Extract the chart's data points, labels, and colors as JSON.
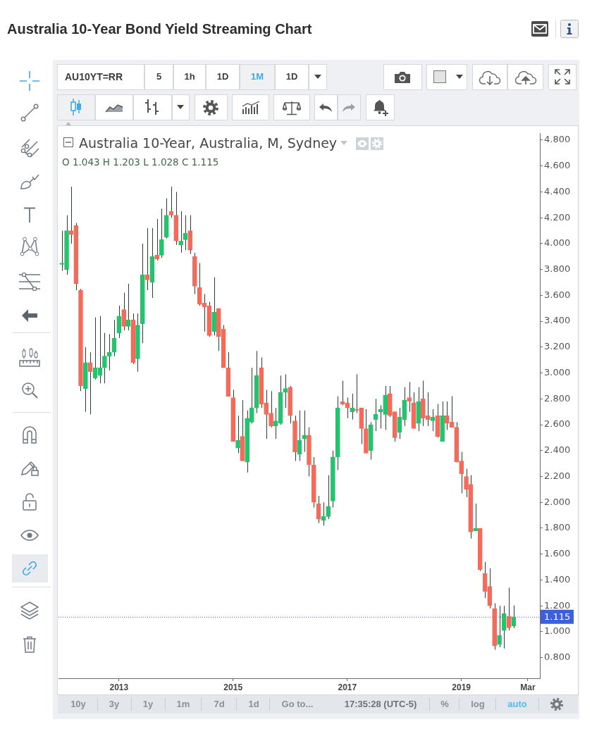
{
  "chart_data": {
    "type": "candlestick",
    "title": "Australia 10-Year Bond Yield Streaming Chart",
    "subtitle": "Australia 10-Year, Australia, M, Sydney",
    "x": [
      "2012-01",
      "2012-02",
      "2012-03",
      "2012-04",
      "2012-05",
      "2012-06",
      "2012-07",
      "2012-08",
      "2012-09",
      "2012-10",
      "2012-11",
      "2012-12",
      "2013-01",
      "2013-02",
      "2013-03",
      "2013-04",
      "2013-05",
      "2013-06",
      "2013-07",
      "2013-08",
      "2013-09",
      "2013-10",
      "2013-11",
      "2013-12",
      "2014-01",
      "2014-02",
      "2014-03",
      "2014-04",
      "2014-05",
      "2014-06",
      "2014-07",
      "2014-08",
      "2014-09",
      "2014-10",
      "2014-11",
      "2014-12",
      "2015-01",
      "2015-02",
      "2015-03",
      "2015-04",
      "2015-05",
      "2015-06",
      "2015-07",
      "2015-08",
      "2015-09",
      "2015-10",
      "2015-11",
      "2015-12",
      "2016-01",
      "2016-02",
      "2016-03",
      "2016-04",
      "2016-05",
      "2016-06",
      "2016-07",
      "2016-08",
      "2016-09",
      "2016-10",
      "2016-11",
      "2016-12",
      "2017-01",
      "2017-02",
      "2017-03",
      "2017-04",
      "2017-05",
      "2017-06",
      "2017-07",
      "2017-08",
      "2017-09",
      "2017-10",
      "2017-11",
      "2017-12",
      "2018-01",
      "2018-02",
      "2018-03",
      "2018-04",
      "2018-05",
      "2018-06",
      "2018-07",
      "2018-08",
      "2018-09",
      "2018-10",
      "2018-11",
      "2018-12",
      "2019-01",
      "2019-02",
      "2019-03",
      "2019-04",
      "2019-05",
      "2019-06",
      "2019-07",
      "2019-08",
      "2019-09",
      "2019-10",
      "2019-11",
      "2019-12"
    ],
    "ohlc": [
      [
        3.84,
        4.1,
        3.79,
        3.85
      ],
      [
        3.8,
        4.22,
        3.76,
        4.1
      ],
      [
        4.1,
        4.44,
        4.0,
        4.07
      ],
      [
        4.14,
        4.16,
        3.64,
        3.69
      ],
      [
        3.64,
        3.65,
        2.86,
        2.9
      ],
      [
        2.88,
        3.2,
        2.7,
        3.08
      ],
      [
        3.08,
        3.16,
        2.68,
        3.01
      ],
      [
        2.96,
        3.43,
        2.95,
        3.04
      ],
      [
        2.98,
        3.44,
        2.92,
        3.04
      ],
      [
        3.04,
        3.31,
        2.92,
        3.13
      ],
      [
        3.13,
        3.3,
        3.02,
        3.16
      ],
      [
        3.16,
        3.41,
        3.13,
        3.27
      ],
      [
        3.31,
        3.52,
        3.27,
        3.44
      ],
      [
        3.49,
        3.62,
        3.33,
        3.36
      ],
      [
        3.36,
        3.69,
        3.33,
        3.41
      ],
      [
        3.41,
        3.46,
        3.07,
        3.08
      ],
      [
        3.11,
        3.46,
        3.01,
        3.37
      ],
      [
        3.38,
        4.0,
        3.23,
        3.76
      ],
      [
        3.76,
        4.12,
        3.64,
        3.72
      ],
      [
        3.7,
        4.12,
        3.58,
        3.9
      ],
      [
        3.91,
        4.19,
        3.87,
        3.88
      ],
      [
        3.91,
        4.27,
        3.89,
        4.03
      ],
      [
        4.05,
        4.35,
        4.04,
        4.22
      ],
      [
        4.25,
        4.44,
        4.2,
        4.22
      ],
      [
        4.22,
        4.4,
        3.99,
        4.02
      ],
      [
        3.99,
        4.25,
        3.93,
        4.02
      ],
      [
        4.03,
        4.22,
        3.95,
        4.08
      ],
      [
        4.1,
        4.22,
        3.92,
        3.95
      ],
      [
        3.9,
        3.93,
        3.61,
        3.67
      ],
      [
        3.66,
        3.85,
        3.52,
        3.53
      ],
      [
        3.54,
        3.61,
        3.32,
        3.51
      ],
      [
        3.52,
        3.55,
        3.28,
        3.29
      ],
      [
        3.32,
        3.74,
        3.29,
        3.47
      ],
      [
        3.5,
        3.5,
        3.17,
        3.28
      ],
      [
        3.34,
        3.37,
        3.04,
        3.04
      ],
      [
        3.04,
        3.16,
        2.82,
        2.82
      ],
      [
        2.81,
        2.87,
        2.47,
        2.47
      ],
      [
        2.42,
        2.67,
        2.38,
        2.48
      ],
      [
        2.51,
        2.79,
        2.32,
        2.32
      ],
      [
        2.31,
        2.71,
        2.23,
        2.65
      ],
      [
        2.62,
        3.04,
        2.61,
        2.73
      ],
      [
        2.73,
        3.17,
        2.69,
        2.98
      ],
      [
        3.04,
        3.12,
        2.73,
        2.76
      ],
      [
        2.77,
        2.87,
        2.49,
        2.68
      ],
      [
        2.69,
        2.86,
        2.58,
        2.59
      ],
      [
        2.59,
        2.73,
        2.49,
        2.63
      ],
      [
        2.61,
        2.98,
        2.6,
        2.85
      ],
      [
        2.85,
        2.99,
        2.73,
        2.88
      ],
      [
        2.89,
        2.9,
        2.61,
        2.67
      ],
      [
        2.63,
        2.67,
        2.32,
        2.39
      ],
      [
        2.37,
        2.71,
        2.32,
        2.48
      ],
      [
        2.49,
        2.71,
        2.39,
        2.52
      ],
      [
        2.52,
        2.58,
        2.2,
        2.29
      ],
      [
        2.29,
        2.35,
        1.96,
        2.0
      ],
      [
        1.99,
        2.05,
        1.84,
        1.87
      ],
      [
        1.86,
        2.0,
        1.82,
        1.89
      ],
      [
        1.89,
        2.21,
        1.87,
        1.97
      ],
      [
        2.01,
        2.4,
        1.96,
        2.35
      ],
      [
        2.35,
        2.82,
        2.25,
        2.73
      ],
      [
        2.78,
        2.94,
        2.75,
        2.76
      ],
      [
        2.77,
        2.81,
        2.65,
        2.73
      ],
      [
        2.7,
        2.84,
        2.64,
        2.73
      ],
      [
        2.72,
        2.99,
        2.69,
        2.71
      ],
      [
        2.73,
        2.73,
        2.45,
        2.57
      ],
      [
        2.57,
        2.72,
        2.38,
        2.38
      ],
      [
        2.4,
        2.62,
        2.33,
        2.6
      ],
      [
        2.64,
        2.8,
        2.55,
        2.68
      ],
      [
        2.7,
        2.75,
        2.57,
        2.72
      ],
      [
        2.68,
        2.9,
        2.56,
        2.83
      ],
      [
        2.84,
        2.9,
        2.66,
        2.67
      ],
      [
        2.7,
        2.7,
        2.47,
        2.5
      ],
      [
        2.54,
        2.73,
        2.49,
        2.66
      ],
      [
        2.64,
        2.89,
        2.59,
        2.79
      ],
      [
        2.81,
        2.93,
        2.7,
        2.78
      ],
      [
        2.77,
        2.85,
        2.57,
        2.57
      ],
      [
        2.61,
        2.89,
        2.55,
        2.78
      ],
      [
        2.8,
        2.94,
        2.59,
        2.65
      ],
      [
        2.67,
        2.85,
        2.59,
        2.64
      ],
      [
        2.63,
        2.72,
        2.55,
        2.66
      ],
      [
        2.67,
        2.76,
        2.5,
        2.51
      ],
      [
        2.47,
        2.78,
        2.47,
        2.67
      ],
      [
        2.67,
        2.78,
        2.56,
        2.61
      ],
      [
        2.62,
        2.82,
        2.58,
        2.58
      ],
      [
        2.58,
        2.62,
        2.31,
        2.31
      ],
      [
        2.32,
        2.39,
        2.07,
        2.22
      ],
      [
        2.2,
        2.26,
        2.04,
        2.1
      ],
      [
        2.14,
        2.21,
        1.72,
        1.77
      ],
      [
        1.78,
        1.99,
        1.78,
        1.8
      ],
      [
        1.8,
        1.8,
        1.47,
        1.48
      ],
      [
        1.45,
        1.54,
        1.26,
        1.31
      ],
      [
        1.35,
        1.49,
        1.18,
        1.2
      ],
      [
        1.18,
        1.22,
        0.86,
        0.89
      ],
      [
        0.9,
        1.2,
        0.88,
        0.97
      ],
      [
        1.01,
        1.2,
        0.87,
        1.14
      ],
      [
        1.12,
        1.34,
        1.01,
        1.03
      ],
      [
        1.043,
        1.203,
        1.028,
        1.115
      ]
    ],
    "colors": [
      "#26c26d",
      "#26c26d",
      "#f26b5b",
      "#f26b5b",
      "#f26b5b",
      "#26c26d",
      "#f26b5b",
      "#26c26d",
      "#26c26d",
      "#26c26d",
      "#26c26d",
      "#26c26d",
      "#26c26d",
      "#f26b5b",
      "#26c26d",
      "#f26b5b",
      "#26c26d",
      "#26c26d",
      "#f26b5b",
      "#26c26d",
      "#f26b5b",
      "#26c26d",
      "#26c26d",
      "#f26b5b",
      "#f26b5b",
      "#26c26d",
      "#26c26d",
      "#f26b5b",
      "#f26b5b",
      "#f26b5b",
      "#f26b5b",
      "#f26b5b",
      "#26c26d",
      "#f26b5b",
      "#f26b5b",
      "#f26b5b",
      "#f26b5b",
      "#26c26d",
      "#f26b5b",
      "#26c26d",
      "#26c26d",
      "#26c26d",
      "#f26b5b",
      "#f26b5b",
      "#f26b5b",
      "#26c26d",
      "#26c26d",
      "#26c26d",
      "#f26b5b",
      "#f26b5b",
      "#26c26d",
      "#26c26d",
      "#f26b5b",
      "#f26b5b",
      "#f26b5b",
      "#26c26d",
      "#26c26d",
      "#26c26d",
      "#26c26d",
      "#f26b5b",
      "#f26b5b",
      "#26c26d",
      "#f26b5b",
      "#f26b5b",
      "#f26b5b",
      "#26c26d",
      "#26c26d",
      "#26c26d",
      "#26c26d",
      "#f26b5b",
      "#f26b5b",
      "#26c26d",
      "#26c26d",
      "#f26b5b",
      "#f26b5b",
      "#26c26d",
      "#f26b5b",
      "#f26b5b",
      "#26c26d",
      "#f26b5b",
      "#26c26d",
      "#f26b5b",
      "#f26b5b",
      "#f26b5b",
      "#f26b5b",
      "#f26b5b",
      "#f26b5b",
      "#26c26d",
      "#f26b5b",
      "#f26b5b",
      "#f26b5b",
      "#f26b5b",
      "#26c26d",
      "#26c26d",
      "#f26b5b",
      "#26c26d"
    ],
    "xlim": [
      "2011-12-11",
      "2020-05-17"
    ],
    "xticks": [
      "2013",
      "2015",
      "2017",
      "2019",
      {
        "value": "2020-03",
        "label": "Mar"
      }
    ],
    "ylim": [
      0.64,
      4.85
    ],
    "yticks": [
      {
        "value": 0.8,
        "label": "0.800"
      },
      {
        "value": 1,
        "label": "1.000"
      },
      {
        "value": 1.2,
        "label": "1.200"
      },
      {
        "value": 1.4,
        "label": "1.400"
      },
      {
        "value": 1.6,
        "label": "1.600"
      },
      {
        "value": 1.8,
        "label": "1.800"
      },
      {
        "value": 2,
        "label": "2.000"
      },
      {
        "value": 2.2,
        "label": "2.200"
      },
      {
        "value": 2.4,
        "label": "2.400"
      },
      {
        "value": 2.6,
        "label": "2.600"
      },
      {
        "value": 2.8,
        "label": "2.800"
      },
      {
        "value": 3,
        "label": "3.000"
      },
      {
        "value": 3.2,
        "label": "3.200"
      },
      {
        "value": 3.4,
        "label": "3.400"
      },
      {
        "value": 3.6,
        "label": "3.600"
      },
      {
        "value": 3.8,
        "label": "3.800"
      },
      {
        "value": 4,
        "label": "4.000"
      },
      {
        "value": 4.2,
        "label": "4.200"
      },
      {
        "value": 4.4,
        "label": "4.400"
      },
      {
        "value": 4.6,
        "label": "4.600"
      },
      {
        "value": 4.8,
        "label": "4.800"
      }
    ],
    "ref_lines": [
      {
        "axis": "y",
        "value": 1.115,
        "label": "1.115",
        "color": "#3d5fdc",
        "line_style": "dotted"
      }
    ],
    "annotations": [
      "O 1.043 H 1.203 L 1.028 C 1.115",
      "AU10YT=RR",
      "5",
      "1h",
      "1D",
      "1M",
      "1D",
      "10y",
      "3y",
      "1y",
      "1m",
      "7d",
      "1d",
      "Go to...",
      "17:35:28 (UTC-5)",
      "%",
      "log",
      "auto"
    ]
  }
}
